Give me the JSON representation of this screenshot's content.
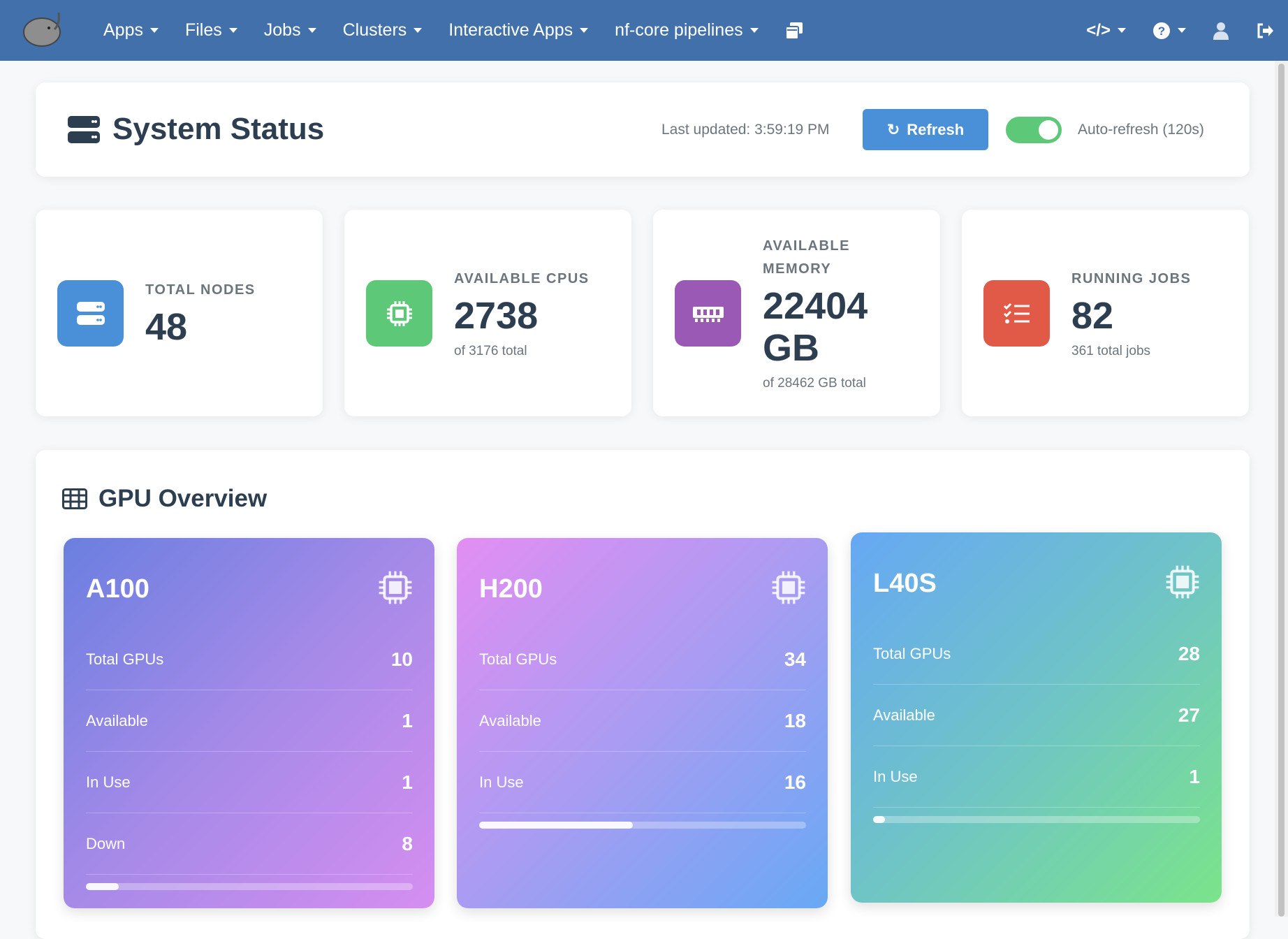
{
  "nav": {
    "items": [
      {
        "label": "Apps"
      },
      {
        "label": "Files"
      },
      {
        "label": "Jobs"
      },
      {
        "label": "Clusters"
      },
      {
        "label": "Interactive Apps"
      },
      {
        "label": "nf-core pipelines"
      }
    ],
    "color": "#4270aa"
  },
  "header": {
    "title": "System Status",
    "last_updated": "Last updated: 3:59:19 PM",
    "refresh_label": "Refresh",
    "auto_refresh_label": "Auto-refresh (120s)",
    "auto_refresh_on": true
  },
  "stats": [
    {
      "label": "TOTAL NODES",
      "value": "48",
      "sub": "",
      "color": "#4a90d9",
      "icon": "server-icon"
    },
    {
      "label": "AVAILABLE CPUS",
      "value": "2738",
      "sub": "of 3176 total",
      "color": "#5cc878",
      "icon": "cpu-icon"
    },
    {
      "label": "AVAILABLE MEMORY",
      "value": "22404 GB",
      "sub": "of 28462 GB total",
      "color": "#9b59b6",
      "icon": "memory-icon"
    },
    {
      "label": "RUNNING JOBS",
      "value": "82",
      "sub": "361 total jobs",
      "color": "#e05a47",
      "icon": "tasks-icon"
    }
  ],
  "gpu": {
    "title": "GPU Overview",
    "cards": [
      {
        "name": "A100",
        "rows": [
          {
            "label": "Total GPUs",
            "value": "10"
          },
          {
            "label": "Available",
            "value": "1"
          },
          {
            "label": "In Use",
            "value": "1"
          },
          {
            "label": "Down",
            "value": "8"
          }
        ],
        "usage": 0.1
      },
      {
        "name": "H200",
        "rows": [
          {
            "label": "Total GPUs",
            "value": "34"
          },
          {
            "label": "Available",
            "value": "18"
          },
          {
            "label": "In Use",
            "value": "16"
          }
        ],
        "usage": 0.47
      },
      {
        "name": "L40S",
        "rows": [
          {
            "label": "Total GPUs",
            "value": "28"
          },
          {
            "label": "Available",
            "value": "27"
          },
          {
            "label": "In Use",
            "value": "1"
          }
        ],
        "usage": 0.036
      }
    ]
  }
}
